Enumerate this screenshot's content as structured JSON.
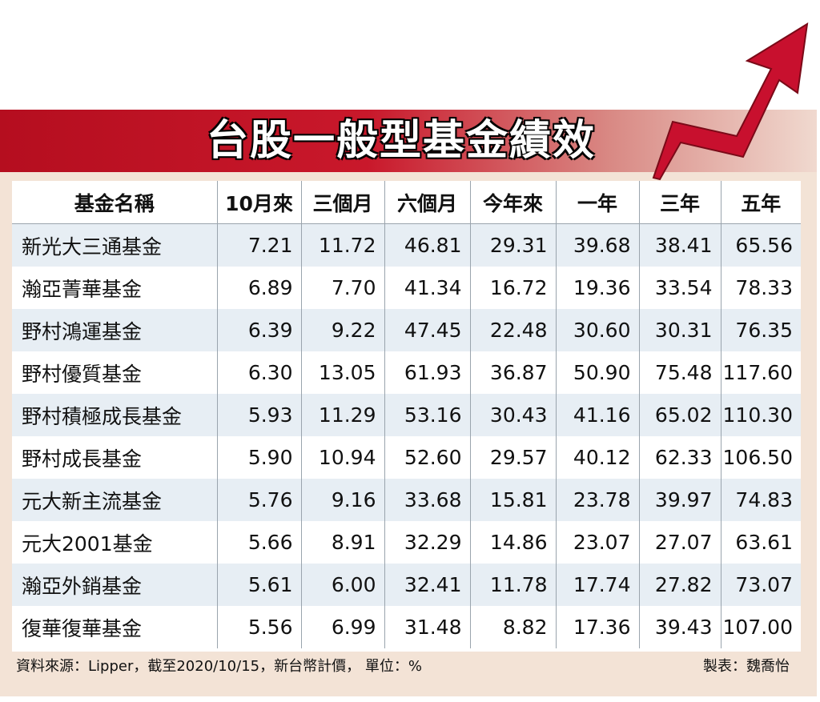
{
  "title": "台股一般型基金績效",
  "columns": [
    "基金名稱",
    "10月來",
    "三個月",
    "六個月",
    "今年來",
    "一年",
    "三年",
    "五年"
  ],
  "rows": [
    [
      "新光大三通基金",
      "7.21",
      "11.72",
      "46.81",
      "29.31",
      "39.68",
      "38.41",
      "65.56"
    ],
    [
      "瀚亞菁華基金",
      "6.89",
      "7.70",
      "41.34",
      "16.72",
      "19.36",
      "33.54",
      "78.33"
    ],
    [
      "野村鴻運基金",
      "6.39",
      "9.22",
      "47.45",
      "22.48",
      "30.60",
      "30.31",
      "76.35"
    ],
    [
      "野村優質基金",
      "6.30",
      "13.05",
      "61.93",
      "36.87",
      "50.90",
      "75.48",
      "117.60"
    ],
    [
      "野村積極成長基金",
      "5.93",
      "11.29",
      "53.16",
      "30.43",
      "41.16",
      "65.02",
      "110.30"
    ],
    [
      "野村成長基金",
      "5.90",
      "10.94",
      "52.60",
      "29.57",
      "40.12",
      "62.33",
      "106.50"
    ],
    [
      "元大新主流基金",
      "5.76",
      "9.16",
      "33.68",
      "15.81",
      "23.78",
      "39.97",
      "74.83"
    ],
    [
      "元大2001基金",
      "5.66",
      "8.91",
      "32.29",
      "14.86",
      "23.07",
      "27.07",
      "63.61"
    ],
    [
      "瀚亞外銷基金",
      "5.61",
      "6.00",
      "32.41",
      "11.78",
      "17.74",
      "27.82",
      "73.07"
    ],
    [
      "復華復華基金",
      "5.56",
      "6.99",
      "31.48",
      "8.82",
      "17.36",
      "39.43",
      "107.00"
    ]
  ],
  "footer": {
    "source": "資料來源：Lipper，截至2020/10/15，新台幣計價， 單位：%",
    "credit": "製表：魏喬怡"
  },
  "colors": {
    "banner": "#b50e1f",
    "arrow": "#c8102e",
    "frame": "#f3e3d6",
    "alt_row": "#e7eef4"
  }
}
